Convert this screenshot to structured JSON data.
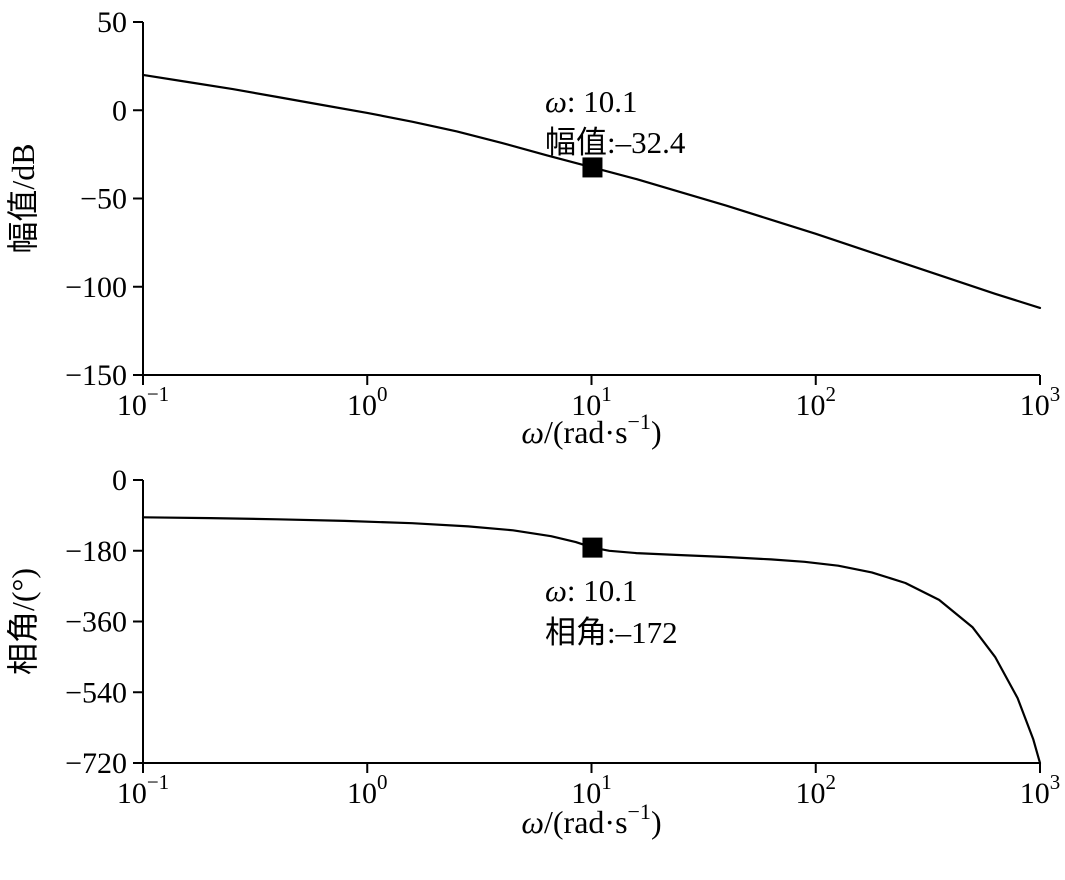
{
  "figure": {
    "kind": "bode-plot",
    "background": "#ffffff",
    "line_color": "#000000",
    "marker_color": "#000000"
  },
  "chart_data": [
    {
      "type": "line",
      "name": "magnitude-plot",
      "title": "",
      "ylabel": "幅值/dB",
      "xlabel": {
        "italic": "ω",
        "mid": "/(rad·s",
        "sup": "−1",
        "post": ")"
      },
      "xscale": "log",
      "xlim_log": [
        -1,
        3
      ],
      "ylim": [
        -150,
        50
      ],
      "grid": false,
      "legend": null,
      "xtick_base": "10",
      "xticks_exp": [
        -1,
        0,
        1,
        2,
        3
      ],
      "xtick_exp_labels": [
        "−1",
        "0",
        "1",
        "2",
        "3"
      ],
      "yticks": [
        50,
        0,
        -50,
        -100,
        -150
      ],
      "ytick_labels": [
        "50",
        "0",
        "−50",
        "−100",
        "−150"
      ],
      "series": [
        {
          "name": "magnitude-curve",
          "color": "#000000",
          "points_logw_value": [
            [
              -1,
              20
            ],
            [
              -0.8,
              16
            ],
            [
              -0.6,
              12
            ],
            [
              -0.4,
              7.5
            ],
            [
              -0.2,
              3
            ],
            [
              0,
              -1.5
            ],
            [
              0.2,
              -6.5
            ],
            [
              0.4,
              -12
            ],
            [
              0.6,
              -18.5
            ],
            [
              0.8,
              -25.5
            ],
            [
              1.0043,
              -32.4
            ],
            [
              1.2,
              -39
            ],
            [
              1.4,
              -46.5
            ],
            [
              1.6,
              -54
            ],
            [
              1.8,
              -62
            ],
            [
              2,
              -70
            ],
            [
              2.2,
              -78.5
            ],
            [
              2.4,
              -87
            ],
            [
              2.6,
              -95.5
            ],
            [
              2.8,
              -104
            ],
            [
              3,
              -112
            ]
          ]
        }
      ],
      "marker": {
        "shape": "square",
        "logw": 1.0043,
        "value": -32.4,
        "omega": 10.1
      },
      "annotation": {
        "lines": [
          "ω: 10.1",
          "幅值:–32.4"
        ]
      }
    },
    {
      "type": "line",
      "name": "phase-plot",
      "title": "",
      "ylabel": "相角/(°)",
      "xlabel": {
        "italic": "ω",
        "mid": "/(rad·s",
        "sup": "−1",
        "post": ")"
      },
      "xscale": "log",
      "xlim_log": [
        -1,
        3
      ],
      "ylim": [
        -720,
        0
      ],
      "grid": false,
      "legend": null,
      "xtick_base": "10",
      "xticks_exp": [
        -1,
        0,
        1,
        2,
        3
      ],
      "xtick_exp_labels": [
        "−1",
        "0",
        "1",
        "2",
        "3"
      ],
      "yticks": [
        0,
        -180,
        -360,
        -540,
        -720
      ],
      "ytick_labels": [
        "0",
        "−180",
        "−360",
        "−540",
        "−720"
      ],
      "series": [
        {
          "name": "phase-curve",
          "color": "#000000",
          "points_logw_value": [
            [
              -1,
              -95
            ],
            [
              -0.7,
              -97
            ],
            [
              -0.4,
              -100
            ],
            [
              -0.1,
              -104
            ],
            [
              0.2,
              -110
            ],
            [
              0.45,
              -118
            ],
            [
              0.65,
              -128
            ],
            [
              0.82,
              -143
            ],
            [
              0.93,
              -158
            ],
            [
              1.0043,
              -172
            ],
            [
              1.08,
              -180
            ],
            [
              1.2,
              -186
            ],
            [
              1.4,
              -191
            ],
            [
              1.6,
              -196
            ],
            [
              1.8,
              -202
            ],
            [
              1.95,
              -208
            ],
            [
              2.1,
              -218
            ],
            [
              2.25,
              -235
            ],
            [
              2.4,
              -262
            ],
            [
              2.55,
              -305
            ],
            [
              2.7,
              -375
            ],
            [
              2.8,
              -450
            ],
            [
              2.9,
              -555
            ],
            [
              2.97,
              -660
            ],
            [
              3,
              -720
            ]
          ]
        }
      ],
      "marker": {
        "shape": "square",
        "logw": 1.0043,
        "value": -172,
        "omega": 10.1
      },
      "annotation": {
        "lines": [
          "ω: 10.1",
          "相角:–172"
        ]
      }
    }
  ]
}
